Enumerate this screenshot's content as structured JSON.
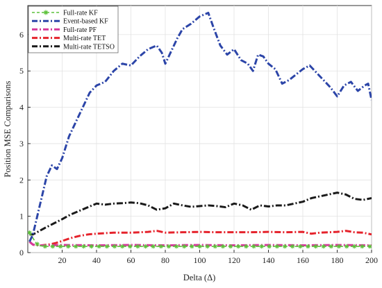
{
  "chart_data": {
    "type": "line",
    "title": "",
    "xlabel": "Delta (Δ)",
    "ylabel": "Position MSE Comparisons",
    "xlim": [
      0,
      200
    ],
    "ylim": [
      0,
      6.8
    ],
    "xticks": [
      20,
      40,
      60,
      80,
      100,
      120,
      140,
      160,
      180,
      200
    ],
    "yticks": [
      0,
      1,
      2,
      3,
      4,
      5,
      6
    ],
    "grid": true,
    "legend_position": "top-left",
    "series": [
      {
        "name": "Full-rate KF",
        "color": "#5cc13a",
        "style": "dashed-star",
        "x": [
          1,
          3,
          5,
          7,
          10,
          20,
          40,
          60,
          80,
          100,
          120,
          140,
          160,
          180,
          200
        ],
        "y": [
          0.55,
          0.4,
          0.25,
          0.19,
          0.17,
          0.17,
          0.17,
          0.17,
          0.17,
          0.17,
          0.17,
          0.17,
          0.17,
          0.17,
          0.17
        ]
      },
      {
        "name": "Event-based KF",
        "color": "#2c45a8",
        "style": "dashdot",
        "x": [
          1,
          3,
          5,
          8,
          11,
          14,
          17,
          20,
          24,
          28,
          32,
          36,
          40,
          45,
          50,
          55,
          60,
          65,
          70,
          75,
          78,
          80,
          83,
          87,
          90,
          95,
          100,
          105,
          108,
          112,
          116,
          120,
          124,
          128,
          131,
          134,
          137,
          140,
          144,
          148,
          152,
          156,
          160,
          164,
          168,
          172,
          176,
          180,
          184,
          188,
          192,
          196,
          198,
          200
        ],
        "y": [
          0.3,
          0.5,
          0.9,
          1.5,
          2.1,
          2.4,
          2.3,
          2.6,
          3.2,
          3.6,
          4.0,
          4.4,
          4.6,
          4.7,
          5.0,
          5.2,
          5.15,
          5.4,
          5.6,
          5.7,
          5.5,
          5.2,
          5.5,
          5.9,
          6.15,
          6.3,
          6.5,
          6.6,
          6.2,
          5.7,
          5.45,
          5.6,
          5.3,
          5.2,
          5.0,
          5.45,
          5.4,
          5.2,
          5.05,
          4.65,
          4.75,
          4.9,
          5.05,
          5.15,
          4.95,
          4.75,
          4.55,
          4.3,
          4.6,
          4.7,
          4.45,
          4.6,
          4.65,
          4.2
        ]
      },
      {
        "name": "Full-rate PF",
        "color": "#d63a9c",
        "style": "dashdot",
        "x": [
          1,
          3,
          5,
          10,
          20,
          40,
          60,
          80,
          100,
          120,
          140,
          160,
          180,
          200
        ],
        "y": [
          0.3,
          0.22,
          0.2,
          0.2,
          0.21,
          0.2,
          0.21,
          0.2,
          0.21,
          0.2,
          0.21,
          0.2,
          0.21,
          0.2
        ]
      },
      {
        "name": "Multi-rate TET",
        "color": "#e5232c",
        "style": "dashdot",
        "x": [
          1,
          3,
          5,
          8,
          12,
          16,
          20,
          25,
          30,
          35,
          40,
          50,
          60,
          70,
          75,
          80,
          90,
          100,
          110,
          120,
          130,
          140,
          150,
          160,
          165,
          170,
          180,
          185,
          190,
          195,
          200
        ],
        "y": [
          0.3,
          0.22,
          0.2,
          0.2,
          0.22,
          0.26,
          0.32,
          0.4,
          0.46,
          0.5,
          0.52,
          0.55,
          0.55,
          0.57,
          0.6,
          0.55,
          0.56,
          0.57,
          0.56,
          0.56,
          0.56,
          0.57,
          0.56,
          0.57,
          0.52,
          0.55,
          0.57,
          0.6,
          0.56,
          0.55,
          0.5
        ]
      },
      {
        "name": "Multi-rate TETSO",
        "color": "#1a1a1a",
        "style": "dashdot",
        "x": [
          1,
          3,
          5,
          10,
          15,
          20,
          25,
          30,
          35,
          40,
          45,
          50,
          55,
          60,
          65,
          70,
          75,
          80,
          85,
          90,
          95,
          100,
          105,
          110,
          115,
          120,
          125,
          130,
          135,
          140,
          145,
          150,
          155,
          160,
          165,
          170,
          175,
          180,
          185,
          190,
          195,
          200
        ],
        "y": [
          0.5,
          0.5,
          0.55,
          0.68,
          0.8,
          0.92,
          1.05,
          1.15,
          1.25,
          1.35,
          1.32,
          1.35,
          1.36,
          1.38,
          1.36,
          1.3,
          1.18,
          1.22,
          1.35,
          1.3,
          1.26,
          1.28,
          1.3,
          1.28,
          1.25,
          1.35,
          1.3,
          1.18,
          1.3,
          1.27,
          1.3,
          1.3,
          1.35,
          1.4,
          1.5,
          1.55,
          1.6,
          1.65,
          1.6,
          1.48,
          1.45,
          1.5
        ]
      }
    ]
  }
}
